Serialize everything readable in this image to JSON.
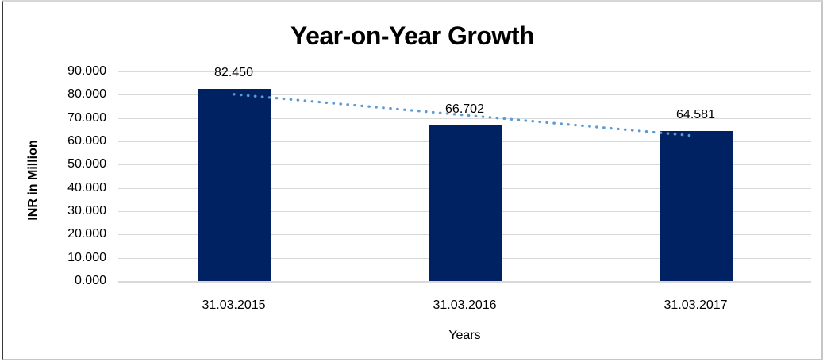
{
  "chart_data": {
    "type": "bar",
    "title": "Year-on-Year Growth",
    "xlabel": "Years",
    "ylabel": "INR in Million",
    "categories": [
      "31.03.2015",
      "31.03.2016",
      "31.03.2017"
    ],
    "values": [
      82.45,
      66.702,
      64.581
    ],
    "data_labels": [
      "82.450",
      "66.702",
      "64.581"
    ],
    "ylim": [
      0,
      90
    ],
    "ytick_step": 10,
    "ytick_labels": [
      "0.000",
      "10.000",
      "20.000",
      "30.000",
      "40.000",
      "50.000",
      "60.000",
      "70.000",
      "80.000",
      "90.000"
    ],
    "grid": "horizontal",
    "legend": "none",
    "bar_color": "#002263",
    "gridline_color": "#d9d9d9",
    "trendline": {
      "type": "linear",
      "style": "dotted",
      "color": "#5b9bd5"
    }
  }
}
